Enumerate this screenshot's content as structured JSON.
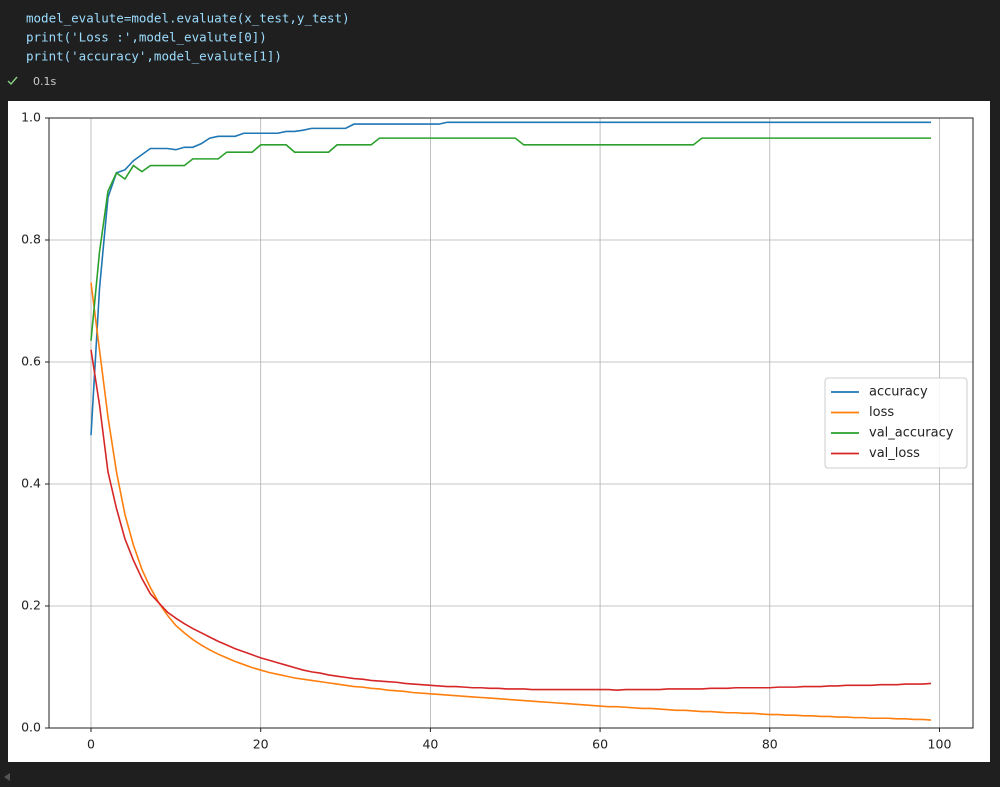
{
  "code": [
    "model_evalute=model.evaluate(x_test,y_test)",
    "print('Loss :',model_evalute[0])",
    "print('accuracy',model_evalute[1])"
  ],
  "status": "0.1s",
  "chart_data": {
    "type": "line",
    "x": [
      0,
      1,
      2,
      3,
      4,
      5,
      6,
      7,
      8,
      9,
      10,
      11,
      12,
      13,
      14,
      15,
      16,
      17,
      18,
      19,
      20,
      21,
      22,
      23,
      24,
      25,
      26,
      27,
      28,
      29,
      30,
      31,
      32,
      33,
      34,
      35,
      36,
      37,
      38,
      39,
      40,
      41,
      42,
      43,
      44,
      45,
      46,
      47,
      48,
      49,
      50,
      51,
      52,
      53,
      54,
      55,
      56,
      57,
      58,
      59,
      60,
      61,
      62,
      63,
      64,
      65,
      66,
      67,
      68,
      69,
      70,
      71,
      72,
      73,
      74,
      75,
      76,
      77,
      78,
      79,
      80,
      81,
      82,
      83,
      84,
      85,
      86,
      87,
      88,
      89,
      90,
      91,
      92,
      93,
      94,
      95,
      96,
      97,
      98,
      99
    ],
    "series": [
      {
        "name": "accuracy",
        "color": "#1f77b4",
        "values": [
          0.48,
          0.72,
          0.87,
          0.91,
          0.915,
          0.93,
          0.94,
          0.95,
          0.95,
          0.95,
          0.948,
          0.952,
          0.952,
          0.958,
          0.967,
          0.97,
          0.97,
          0.97,
          0.975,
          0.975,
          0.975,
          0.975,
          0.975,
          0.978,
          0.978,
          0.98,
          0.983,
          0.983,
          0.983,
          0.983,
          0.983,
          0.99,
          0.99,
          0.99,
          0.99,
          0.99,
          0.99,
          0.99,
          0.99,
          0.99,
          0.99,
          0.99,
          0.993,
          0.993,
          0.993,
          0.993,
          0.993,
          0.993,
          0.993,
          0.993,
          0.993,
          0.993,
          0.993,
          0.993,
          0.993,
          0.993,
          0.993,
          0.993,
          0.993,
          0.993,
          0.993,
          0.993,
          0.993,
          0.993,
          0.993,
          0.993,
          0.993,
          0.993,
          0.993,
          0.993,
          0.993,
          0.993,
          0.993,
          0.993,
          0.993,
          0.993,
          0.993,
          0.993,
          0.993,
          0.993,
          0.993,
          0.993,
          0.993,
          0.993,
          0.993,
          0.993,
          0.993,
          0.993,
          0.993,
          0.993,
          0.993,
          0.993,
          0.993,
          0.993,
          0.993,
          0.993,
          0.993,
          0.993,
          0.993,
          0.993
        ]
      },
      {
        "name": "loss",
        "color": "#ff7f0e",
        "values": [
          0.73,
          0.62,
          0.51,
          0.42,
          0.35,
          0.3,
          0.26,
          0.23,
          0.205,
          0.185,
          0.168,
          0.156,
          0.145,
          0.136,
          0.128,
          0.121,
          0.115,
          0.109,
          0.104,
          0.099,
          0.095,
          0.091,
          0.088,
          0.085,
          0.082,
          0.08,
          0.078,
          0.076,
          0.074,
          0.072,
          0.07,
          0.068,
          0.067,
          0.065,
          0.064,
          0.062,
          0.061,
          0.06,
          0.058,
          0.057,
          0.056,
          0.055,
          0.054,
          0.053,
          0.052,
          0.051,
          0.05,
          0.049,
          0.048,
          0.047,
          0.046,
          0.045,
          0.044,
          0.043,
          0.042,
          0.041,
          0.04,
          0.039,
          0.038,
          0.037,
          0.036,
          0.035,
          0.035,
          0.034,
          0.033,
          0.032,
          0.032,
          0.031,
          0.03,
          0.029,
          0.029,
          0.028,
          0.027,
          0.027,
          0.026,
          0.025,
          0.025,
          0.024,
          0.024,
          0.023,
          0.022,
          0.022,
          0.021,
          0.021,
          0.02,
          0.02,
          0.019,
          0.019,
          0.018,
          0.018,
          0.017,
          0.017,
          0.016,
          0.016,
          0.016,
          0.015,
          0.015,
          0.014,
          0.014,
          0.013
        ]
      },
      {
        "name": "val_accuracy",
        "color": "#2ca02c",
        "values": [
          0.635,
          0.78,
          0.88,
          0.91,
          0.9,
          0.922,
          0.912,
          0.922,
          0.922,
          0.922,
          0.922,
          0.922,
          0.933,
          0.933,
          0.933,
          0.933,
          0.944,
          0.944,
          0.944,
          0.944,
          0.956,
          0.956,
          0.956,
          0.956,
          0.944,
          0.944,
          0.944,
          0.944,
          0.944,
          0.956,
          0.956,
          0.956,
          0.956,
          0.956,
          0.967,
          0.967,
          0.967,
          0.967,
          0.967,
          0.967,
          0.967,
          0.967,
          0.967,
          0.967,
          0.967,
          0.967,
          0.967,
          0.967,
          0.967,
          0.967,
          0.967,
          0.956,
          0.956,
          0.956,
          0.956,
          0.956,
          0.956,
          0.956,
          0.956,
          0.956,
          0.956,
          0.956,
          0.956,
          0.956,
          0.956,
          0.956,
          0.956,
          0.956,
          0.956,
          0.956,
          0.956,
          0.956,
          0.967,
          0.967,
          0.967,
          0.967,
          0.967,
          0.967,
          0.967,
          0.967,
          0.967,
          0.967,
          0.967,
          0.967,
          0.967,
          0.967,
          0.967,
          0.967,
          0.967,
          0.967,
          0.967,
          0.967,
          0.967,
          0.967,
          0.967,
          0.967,
          0.967,
          0.967,
          0.967,
          0.967
        ]
      },
      {
        "name": "val_loss",
        "color": "#d62728",
        "values": [
          0.62,
          0.53,
          0.42,
          0.36,
          0.31,
          0.275,
          0.245,
          0.22,
          0.205,
          0.19,
          0.18,
          0.171,
          0.163,
          0.156,
          0.149,
          0.142,
          0.136,
          0.13,
          0.125,
          0.12,
          0.115,
          0.111,
          0.107,
          0.103,
          0.099,
          0.095,
          0.092,
          0.09,
          0.087,
          0.085,
          0.083,
          0.081,
          0.08,
          0.078,
          0.077,
          0.076,
          0.075,
          0.073,
          0.072,
          0.071,
          0.07,
          0.069,
          0.068,
          0.068,
          0.067,
          0.066,
          0.066,
          0.065,
          0.065,
          0.064,
          0.064,
          0.064,
          0.063,
          0.063,
          0.063,
          0.063,
          0.063,
          0.063,
          0.063,
          0.063,
          0.063,
          0.063,
          0.062,
          0.063,
          0.063,
          0.063,
          0.063,
          0.063,
          0.064,
          0.064,
          0.064,
          0.064,
          0.064,
          0.065,
          0.065,
          0.065,
          0.066,
          0.066,
          0.066,
          0.066,
          0.066,
          0.067,
          0.067,
          0.067,
          0.068,
          0.068,
          0.068,
          0.069,
          0.069,
          0.07,
          0.07,
          0.07,
          0.07,
          0.071,
          0.071,
          0.071,
          0.072,
          0.072,
          0.072,
          0.073
        ]
      }
    ],
    "xlim": [
      -4.95,
      103.95
    ],
    "xticks": [
      0,
      20,
      40,
      60,
      80,
      100
    ],
    "ylim": [
      0,
      1
    ],
    "yticks": [
      {
        "value": 0,
        "label": "0.0"
      },
      0.2,
      0.4,
      0.6,
      0.8,
      {
        "value": 1,
        "label": "1.0"
      }
    ],
    "grid": true,
    "legend": "center right"
  }
}
